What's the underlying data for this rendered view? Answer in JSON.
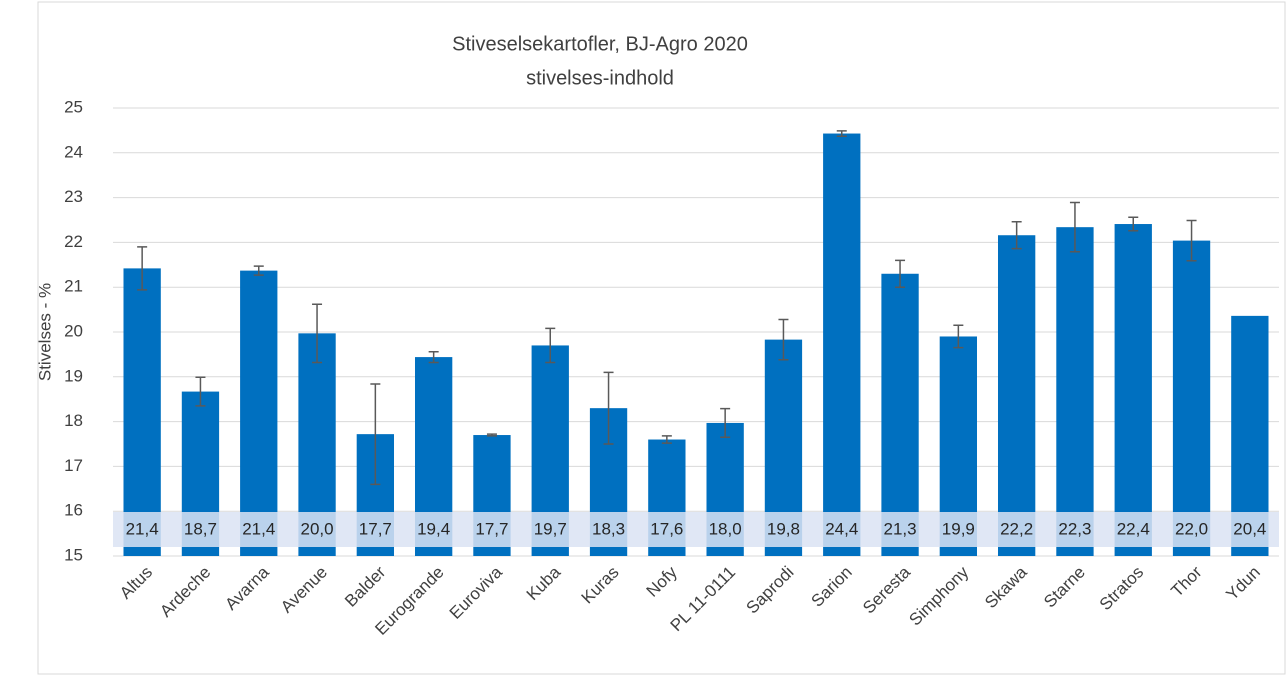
{
  "chart_data": {
    "type": "bar",
    "title": "Stiveselsekartofler, BJ-Agro 2020",
    "subtitle": "stivelses-indhold",
    "y_label": "Stivelses - %",
    "categories": [
      "Altus",
      "Ardeche",
      "Avarna",
      "Avenue",
      "Balder",
      "Eurogrande",
      "Euroviva",
      "Kuba",
      "Kuras",
      "Nofy",
      "PL 11-0111",
      "Saprodi",
      "Sarion",
      "Seresta",
      "Simphony",
      "Skawa",
      "Starne",
      "Stratos",
      "Thor",
      "Ydun"
    ],
    "values": [
      21.42,
      18.67,
      21.37,
      19.97,
      17.72,
      19.44,
      17.7,
      19.7,
      18.3,
      17.6,
      17.97,
      19.83,
      24.43,
      21.3,
      19.9,
      22.16,
      22.34,
      22.41,
      22.04,
      20.36
    ],
    "value_labels": [
      "21,4",
      "18,7",
      "21,4",
      "20,0",
      "17,7",
      "19,4",
      "17,7",
      "19,7",
      "18,3",
      "17,6",
      "18,0",
      "19,8",
      "24,4",
      "21,3",
      "19,9",
      "22,2",
      "22,3",
      "22,4",
      "22,0",
      "20,4"
    ],
    "errors": [
      0.48,
      0.32,
      0.1,
      0.65,
      1.12,
      0.12,
      0.02,
      0.38,
      0.8,
      0.08,
      0.32,
      0.45,
      0.06,
      0.3,
      0.25,
      0.3,
      0.55,
      0.15,
      0.45,
      null
    ],
    "color": "#0070c0",
    "ylim": [
      15,
      25
    ],
    "yticks": [
      15,
      16,
      17,
      18,
      19,
      20,
      21,
      22,
      23,
      24,
      25
    ],
    "grid": true
  }
}
